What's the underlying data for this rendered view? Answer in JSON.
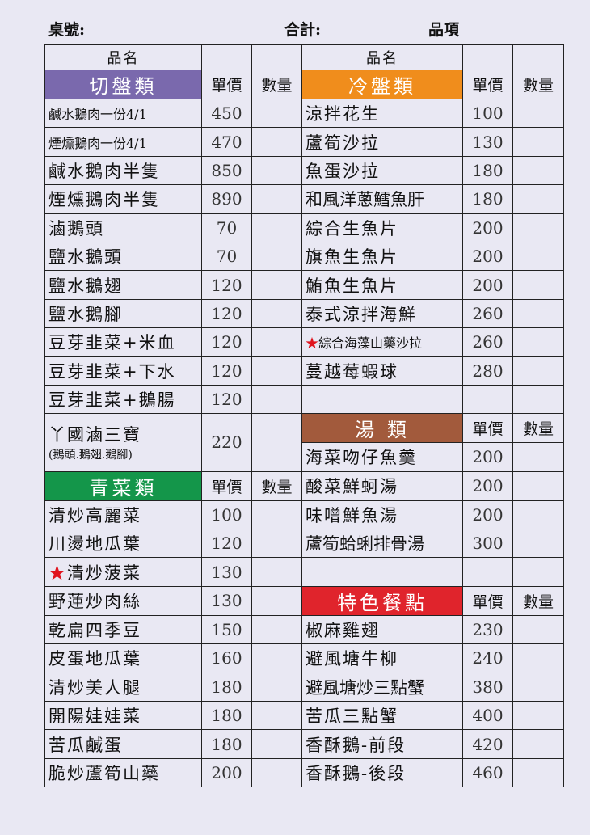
{
  "header": {
    "table_label": "桌號:",
    "total_label": "合計:",
    "items_label": "品項"
  },
  "columns": {
    "name": "品名",
    "price": "單價",
    "qty": "數量"
  },
  "colors": {
    "cut": "#7a69ad",
    "cold": "#f08d1c",
    "soup": "#a25a3c",
    "veg": "#14964a",
    "special": "#e0242c",
    "star": "#e0141e"
  },
  "left": [
    {
      "type": "cat",
      "label": "切盤類",
      "color": "cut"
    },
    {
      "name": "鹹水鵝肉一份4/1",
      "price": "450",
      "small": true
    },
    {
      "name": "煙燻鵝肉一份4/1",
      "price": "470",
      "small": true
    },
    {
      "name": "鹹水鵝肉半隻",
      "price": "850"
    },
    {
      "name": "煙燻鵝肉半隻",
      "price": "890"
    },
    {
      "name": "滷鵝頭",
      "price": "70"
    },
    {
      "name": "鹽水鵝頭",
      "price": "70"
    },
    {
      "name": "鹽水鵝翅",
      "price": "120"
    },
    {
      "name": "鹽水鵝腳",
      "price": "120"
    },
    {
      "name": "豆芽韭菜+米血",
      "price": "120"
    },
    {
      "name": "豆芽韭菜+下水",
      "price": "120"
    },
    {
      "name": "豆芽韭菜+鵝腸",
      "price": "120"
    },
    {
      "name": "丫國滷三寶",
      "sub": "(鵝頭.鵝翅.鵝腳)",
      "price": "220",
      "span": 2
    },
    null,
    {
      "type": "cat",
      "label": "青菜類",
      "color": "veg"
    },
    {
      "name": "清炒高麗菜",
      "price": "100"
    },
    {
      "name": "川燙地瓜葉",
      "price": "120"
    },
    {
      "name": "清炒菠菜",
      "price": "130",
      "star": true
    },
    {
      "name": "野蓮炒肉絲",
      "price": "130"
    },
    {
      "name": "乾扁四季豆",
      "price": "150"
    },
    {
      "name": "皮蛋地瓜葉",
      "price": "160"
    },
    {
      "name": "清炒美人腿",
      "price": "180"
    },
    {
      "name": "開陽娃娃菜",
      "price": "180"
    },
    {
      "name": "苦瓜鹹蛋",
      "price": "180"
    },
    {
      "name": "脆炒蘆筍山藥",
      "price": "200"
    }
  ],
  "right": [
    {
      "type": "cat",
      "label": "冷盤類",
      "color": "cold"
    },
    {
      "name": "涼拌花生",
      "price": "100"
    },
    {
      "name": "蘆筍沙拉",
      "price": "130"
    },
    {
      "name": "魚蛋沙拉",
      "price": "180"
    },
    {
      "name": "和風洋蔥鱈魚肝",
      "price": "180",
      "tight": true
    },
    {
      "name": "綜合生魚片",
      "price": "200"
    },
    {
      "name": "旗魚生魚片",
      "price": "200"
    },
    {
      "name": "鮪魚生魚片",
      "price": "200"
    },
    {
      "name": "泰式涼拌海鮮",
      "price": "260"
    },
    {
      "name": "綜合海藻山藥沙拉",
      "price": "260",
      "star": true,
      "small": true
    },
    {
      "name": "蔓越莓蝦球",
      "price": "280"
    },
    {
      "type": "empty"
    },
    {
      "type": "cat",
      "label": "湯 類",
      "color": "soup"
    },
    {
      "name": "海菜吻仔魚羹",
      "price": "200"
    },
    {
      "name": "酸菜鮮蚵湯",
      "price": "200"
    },
    {
      "name": "味噌鮮魚湯",
      "price": "200"
    },
    {
      "name": "蘆筍蛤蜊排骨湯",
      "price": "300",
      "tight": true
    },
    {
      "type": "empty"
    },
    {
      "type": "cat",
      "label": "特色餐點",
      "color": "special"
    },
    {
      "name": "椒麻雞翅",
      "price": "230"
    },
    {
      "name": "避風塘牛柳",
      "price": "240"
    },
    {
      "name": "避風塘炒三點蟹",
      "price": "380",
      "tight": true
    },
    {
      "name": "苦瓜三點蟹",
      "price": "400"
    },
    {
      "name": "香酥鵝-前段",
      "price": "420"
    },
    {
      "name": "香酥鵝-後段",
      "price": "460"
    }
  ]
}
